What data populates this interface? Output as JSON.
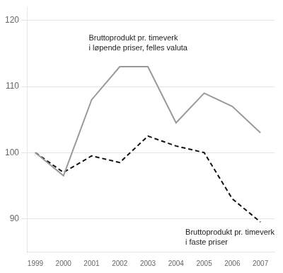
{
  "chart_data": {
    "type": "line",
    "x": [
      1999,
      2000,
      2001,
      2002,
      2003,
      2004,
      2005,
      2006,
      2007
    ],
    "series": [
      {
        "color": "#999999",
        "line_style": "solid",
        "values": [
          100,
          96.5,
          108,
          113,
          113,
          104.5,
          109,
          107,
          103
        ]
      },
      {
        "color": "#111111",
        "line_style": "dashed",
        "values": [
          100,
          97,
          99.5,
          98.5,
          102.5,
          101,
          100,
          93,
          89.5
        ]
      }
    ],
    "annotations": [
      "Bruttoprodukt pr. timeverk\ni løpende priser, felles valuta",
      "Bruttoprodukt pr. timeverk\ni faste priser"
    ],
    "xlim": [
      1998.7,
      2007.5
    ],
    "xticks": [
      1999,
      2000,
      2001,
      2002,
      2003,
      2004,
      2005,
      2006,
      2007
    ],
    "ylim": [
      85,
      122
    ],
    "yticks": [
      90,
      100,
      110,
      120
    ],
    "grid": "y"
  }
}
